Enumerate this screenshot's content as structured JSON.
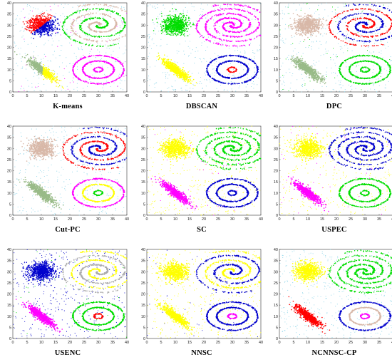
{
  "chart_data": [
    {
      "type": "scatter",
      "title": "K-means",
      "xlim": [
        0,
        40
      ],
      "ylim": [
        0,
        40
      ],
      "x_ticks": [
        0,
        5,
        10,
        15,
        20,
        25,
        30,
        35,
        40
      ],
      "y_ticks": [
        0,
        5,
        10,
        15,
        20,
        25,
        30,
        35,
        40
      ],
      "palette": {
        "gauss_top": "#ff0000",
        "gauss_top_b": "#0000cc",
        "diamond": "#99bb88",
        "diamond_b": "#ffff00",
        "spiral": "#d8b8a8",
        "spiral_b": "#00dd00",
        "rings": [
          "#ff00ff",
          "#ff00ff",
          "#ff00ff"
        ],
        "noise": "#8cd4e8",
        "noise_alt": "#ff00ff"
      }
    },
    {
      "type": "scatter",
      "title": "DBSCAN",
      "xlim": [
        0,
        40
      ],
      "ylim": [
        0,
        40
      ],
      "x_ticks": [
        0,
        5,
        10,
        15,
        20,
        25,
        30,
        35,
        40
      ],
      "y_ticks": [
        0,
        5,
        10,
        15,
        20,
        25,
        30,
        35,
        40
      ],
      "palette": {
        "gauss_top": "#00dd00",
        "diamond": "#ffff00",
        "spiral": "#ff00ff",
        "rings": [
          "#0000cc",
          "#0000cc",
          "#ff0000"
        ],
        "noise": "#8cd4e8"
      }
    },
    {
      "type": "scatter",
      "title": "DPC",
      "xlim": [
        0,
        40
      ],
      "ylim": [
        0,
        40
      ],
      "x_ticks": [
        0,
        5,
        10,
        15,
        20,
        25,
        30,
        35,
        40
      ],
      "y_ticks": [
        0,
        5,
        10,
        15,
        20,
        25,
        30,
        35,
        40
      ],
      "palette": {
        "gauss_top": "#d8b8a8",
        "diamond": "#99bb88",
        "spiral": "#0000cc",
        "spiral_b": "#ff0000",
        "rings": [
          "#00dd00",
          "#00dd00",
          "#00dd00"
        ],
        "noise": "#8cd4e8",
        "noise_alt": "#00dd00"
      }
    },
    {
      "type": "scatter",
      "title": "Cut-PC",
      "xlim": [
        0,
        40
      ],
      "ylim": [
        0,
        40
      ],
      "x_ticks": [
        0,
        5,
        10,
        15,
        20,
        25,
        30,
        35,
        40
      ],
      "y_ticks": [
        0,
        5,
        10,
        15,
        20,
        25,
        30,
        35,
        40
      ],
      "palette": {
        "gauss_top": "#d8b8a8",
        "diamond": "#99bb88",
        "spiral": "#0000cc",
        "spiral_b": "#ff0000",
        "rings": [
          "#ff00ff",
          "#ffff00",
          "#00dd00"
        ],
        "noise": "#8cd4e8"
      }
    },
    {
      "type": "scatter",
      "title": "SC",
      "xlim": [
        0,
        40
      ],
      "ylim": [
        0,
        40
      ],
      "x_ticks": [
        0,
        5,
        10,
        15,
        20,
        25,
        30,
        35,
        40
      ],
      "y_ticks": [
        0,
        5,
        10,
        15,
        20,
        25,
        30,
        35,
        40
      ],
      "palette": {
        "gauss_top": "#ffff00",
        "diamond": "#ff00ff",
        "spiral": "#00dd00",
        "rings": [
          "#0000cc",
          "#0000cc",
          "#0000cc"
        ],
        "noise": "#ffff00",
        "noise_alt": "#ff00ff"
      }
    },
    {
      "type": "scatter",
      "title": "USPEC",
      "xlim": [
        0,
        40
      ],
      "ylim": [
        0,
        40
      ],
      "x_ticks": [
        0,
        5,
        10,
        15,
        20,
        25,
        30,
        35,
        40
      ],
      "y_ticks": [
        0,
        5,
        10,
        15,
        20,
        25,
        30,
        35,
        40
      ],
      "palette": {
        "gauss_top": "#ffff00",
        "diamond": "#ff00ff",
        "spiral": "#0000cc",
        "rings": [
          "#00dd00",
          "#00dd00",
          "#00dd00"
        ],
        "noise": "#ffff00",
        "noise_alt": "#ff00ff"
      }
    },
    {
      "type": "scatter",
      "title": "USENC",
      "xlim": [
        0,
        40
      ],
      "ylim": [
        0,
        40
      ],
      "x_ticks": [
        0,
        5,
        10,
        15,
        20,
        25,
        30,
        35,
        40
      ],
      "y_ticks": [
        0,
        5,
        10,
        15,
        20,
        25,
        30,
        35,
        40
      ],
      "palette": {
        "gauss_top": "#0000cc",
        "diamond": "#ff00ff",
        "spiral": "#ffff00",
        "spiral_b": "#aaaaaa",
        "rings": [
          "#00dd00",
          "#00dd00",
          "#ff0000"
        ],
        "noise": "#0000cc",
        "noise_alt": "#00dd00"
      }
    },
    {
      "type": "scatter",
      "title": "NNSC",
      "xlim": [
        0,
        40
      ],
      "ylim": [
        0,
        40
      ],
      "x_ticks": [
        0,
        5,
        10,
        15,
        20,
        25,
        30,
        35,
        40
      ],
      "y_ticks": [
        0,
        5,
        10,
        15,
        20,
        25,
        30,
        35,
        40
      ],
      "palette": {
        "gauss_top": "#ffff00",
        "diamond": "#ffff00",
        "spiral": "#ffff00",
        "spiral_b": "#0000cc",
        "rings": [
          "#0000cc",
          "#0000cc",
          "#ff00ff"
        ],
        "noise": "#ffff00",
        "noise_alt": "#0000cc"
      }
    },
    {
      "type": "scatter",
      "title": "NCNNSC-CP",
      "xlim": [
        0,
        40
      ],
      "ylim": [
        0,
        40
      ],
      "x_ticks": [
        0,
        5,
        10,
        15,
        20,
        25,
        30,
        35,
        40
      ],
      "y_ticks": [
        0,
        5,
        10,
        15,
        20,
        25,
        30,
        35,
        40
      ],
      "palette": {
        "gauss_top": "#ffff00",
        "diamond": "#ff0000",
        "spiral": "#00dd00",
        "rings": [
          "#0000cc",
          "#d8b8a8",
          "#ff00ff"
        ],
        "noise": "#8cd4e8"
      }
    }
  ]
}
